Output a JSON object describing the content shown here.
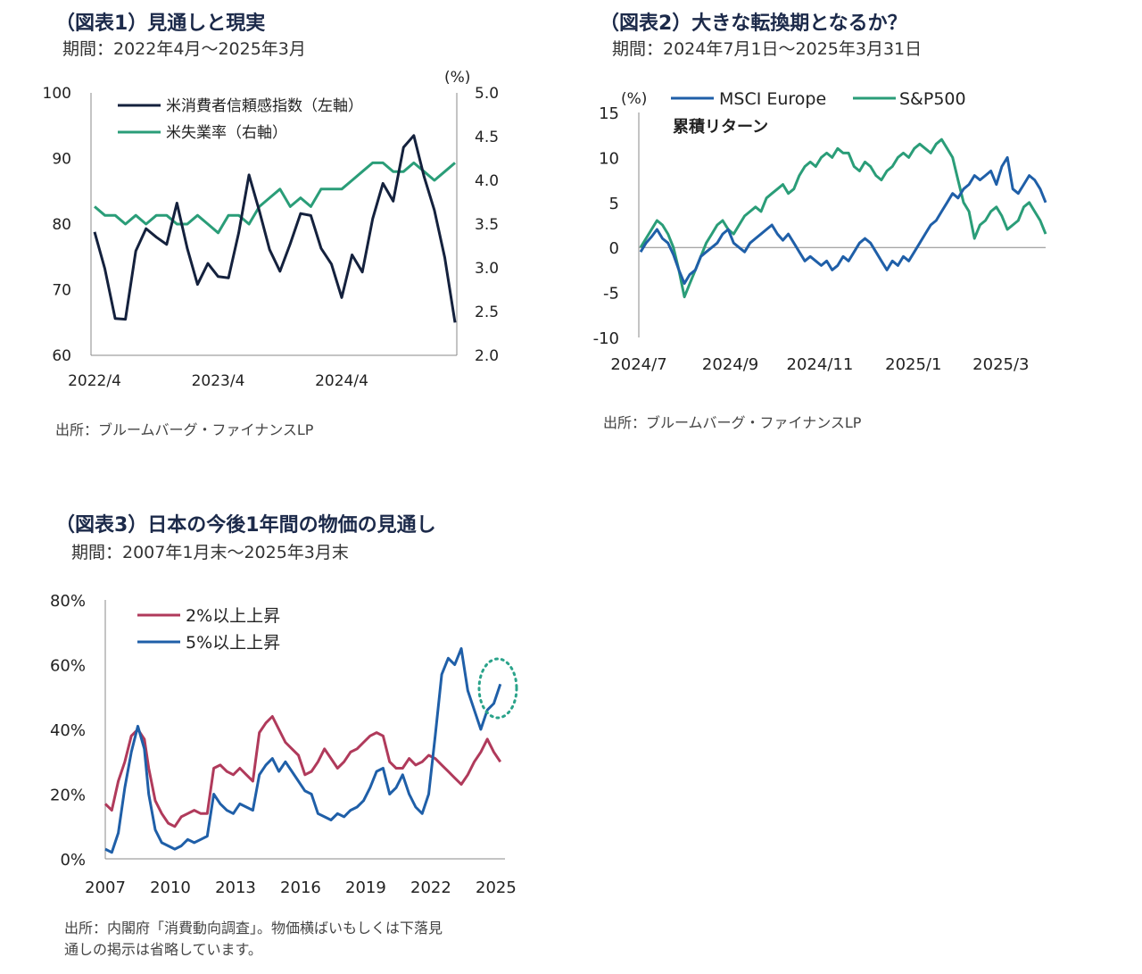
{
  "charts": {
    "c1": {
      "title": "（図表1）見通しと現実",
      "period": "期間：2022年4月〜2025年3月",
      "source": "出所：ブルームバーグ・ファイナンスLP"
    },
    "c2": {
      "title": "（図表2）大きな転換期となるか？",
      "period": "期間：2024年7月1日〜2025年3月31日",
      "source": "出所：ブルームバーグ・ファイナンスLP"
    },
    "c3": {
      "title": "（図表3）日本の今後1年間の物価の見通し",
      "period": "期間：2007年1月末〜2025年3月末",
      "source_lines": [
        "出所：内閣府「消費動向調査」。物価横ばいもしくは下落見",
        "通しの掲示は省略しています。"
      ]
    }
  },
  "colors": {
    "navy": "#14213d",
    "green": "#2a9d78",
    "blue": "#1f5fa8",
    "crimson": "#b03a5b",
    "dotted": "#2aa38a"
  },
  "chart_data": [
    {
      "id": "c1",
      "type": "line",
      "title": "（図表1）見通しと現実",
      "xlabel": "",
      "ylabel": "",
      "x_ticks": [
        "2022/4",
        "2023/4",
        "2024/4"
      ],
      "x_tick_index": [
        0,
        12,
        24
      ],
      "ylim_left": [
        60,
        100
      ],
      "ylim_right": [
        2.0,
        5.0
      ],
      "y_ticks_left": [
        "100",
        "90",
        "80",
        "70",
        "60"
      ],
      "y_ticks_right": [
        "5.0",
        "4.5",
        "4.0",
        "3.5",
        "3.0",
        "2.5",
        "2.0"
      ],
      "right_unit": "(%)",
      "series": [
        {
          "name": "米消費者信頼感指数（左軸）",
          "axis": "left",
          "color": "navy",
          "values": [
            78.8,
            73.2,
            65.6,
            65.5,
            75.9,
            79.3,
            78.0,
            76.9,
            83.2,
            76.3,
            70.8,
            74.0,
            72.0,
            71.8,
            78.7,
            87.5,
            82.0,
            76.1,
            72.8,
            77.0,
            81.6,
            81.3,
            76.3,
            73.9,
            68.8,
            75.3,
            72.7,
            80.8,
            86.2,
            83.5,
            91.7,
            93.5,
            87.2,
            82.1,
            74.9,
            65.0
          ]
        },
        {
          "name": "米失業率（右軸）",
          "axis": "right",
          "color": "green",
          "values": [
            3.7,
            3.6,
            3.6,
            3.5,
            3.6,
            3.5,
            3.6,
            3.6,
            3.5,
            3.5,
            3.6,
            3.5,
            3.4,
            3.6,
            3.6,
            3.5,
            3.7,
            3.8,
            3.9,
            3.7,
            3.8,
            3.7,
            3.9,
            3.9,
            3.9,
            4.0,
            4.1,
            4.2,
            4.2,
            4.1,
            4.1,
            4.2,
            4.1,
            4.0,
            4.1,
            4.2
          ]
        }
      ]
    },
    {
      "id": "c2",
      "type": "line",
      "title": "（図表2）大きな転換期となるか？",
      "xlabel": "",
      "ylabel": "",
      "subtitle": "累積リターン",
      "unit": "(%)",
      "ylim": [
        -10,
        15
      ],
      "y_ticks": [
        "15",
        "10",
        "5",
        "0",
        "-5",
        "-10"
      ],
      "x_ticks": [
        "2024/7",
        "2024/9",
        "2024/11",
        "2025/1",
        "2025/3"
      ],
      "x_tick_frac": [
        0,
        0.225,
        0.445,
        0.675,
        0.89
      ],
      "series": [
        {
          "name": "MSCI Europe",
          "color": "blue",
          "values": [
            -0.5,
            0.5,
            1.2,
            2.0,
            1.0,
            0.5,
            -0.8,
            -2.5,
            -4.0,
            -3.0,
            -2.5,
            -1.0,
            -0.5,
            0.0,
            0.5,
            1.5,
            2.0,
            0.5,
            0.0,
            -0.5,
            0.5,
            1.0,
            1.5,
            2.0,
            2.5,
            1.5,
            0.8,
            1.5,
            0.5,
            -0.5,
            -1.5,
            -1.0,
            -1.5,
            -2.0,
            -1.5,
            -2.5,
            -2.0,
            -1.0,
            -1.5,
            -0.5,
            0.5,
            1.0,
            0.5,
            -0.5,
            -1.5,
            -2.5,
            -1.5,
            -2.0,
            -1.0,
            -1.5,
            -0.5,
            0.5,
            1.5,
            2.5,
            3.0,
            4.0,
            5.0,
            6.0,
            5.5,
            6.5,
            7.0,
            8.0,
            7.5,
            8.0,
            8.5,
            7.0,
            9.0,
            10.0,
            6.5,
            6.0,
            7.0,
            8.0,
            7.5,
            6.5,
            5.0
          ]
        },
        {
          "name": "S&P500",
          "color": "green",
          "values": [
            0.0,
            1.0,
            2.0,
            3.0,
            2.5,
            1.5,
            0.0,
            -2.5,
            -5.5,
            -4.0,
            -2.5,
            -1.0,
            0.5,
            1.5,
            2.5,
            3.0,
            2.0,
            1.5,
            2.5,
            3.5,
            4.0,
            4.5,
            4.0,
            5.5,
            6.0,
            6.5,
            7.0,
            6.0,
            6.5,
            8.0,
            9.0,
            9.5,
            9.0,
            10.0,
            10.5,
            10.0,
            11.0,
            10.5,
            10.5,
            9.0,
            8.5,
            9.5,
            9.0,
            8.0,
            7.5,
            8.5,
            9.0,
            10.0,
            10.5,
            10.0,
            11.0,
            11.5,
            11.0,
            10.5,
            11.5,
            12.0,
            11.0,
            10.0,
            7.5,
            5.0,
            4.0,
            1.0,
            2.5,
            3.0,
            4.0,
            4.5,
            3.5,
            2.0,
            2.5,
            3.0,
            4.5,
            5.0,
            4.0,
            3.0,
            1.5
          ]
        }
      ]
    },
    {
      "id": "c3",
      "type": "line",
      "title": "（図表3）日本の今後1年間の物価の見通し",
      "xlabel": "",
      "ylabel": "",
      "ylim": [
        0,
        80
      ],
      "y_ticks": [
        "80%",
        "60%",
        "40%",
        "20%",
        "0%"
      ],
      "x_ticks": [
        "2007",
        "2010",
        "2013",
        "2016",
        "2019",
        "2022",
        "2025"
      ],
      "x_range": [
        2007.0,
        2025.25
      ],
      "series": [
        {
          "name": "2%以上上昇",
          "color": "crimson",
          "x": [
            2007.0,
            2007.3,
            2007.6,
            2007.9,
            2008.2,
            2008.5,
            2008.8,
            2009.0,
            2009.3,
            2009.6,
            2009.9,
            2010.2,
            2010.5,
            2010.8,
            2011.1,
            2011.4,
            2011.7,
            2012.0,
            2012.3,
            2012.6,
            2012.9,
            2013.2,
            2013.5,
            2013.8,
            2014.1,
            2014.4,
            2014.7,
            2015.0,
            2015.3,
            2015.6,
            2015.9,
            2016.2,
            2016.5,
            2016.8,
            2017.1,
            2017.4,
            2017.7,
            2018.0,
            2018.3,
            2018.6,
            2018.9,
            2019.2,
            2019.5,
            2019.8,
            2020.1,
            2020.4,
            2020.7,
            2021.0,
            2021.3,
            2021.6,
            2021.9,
            2022.2,
            2022.5,
            2022.8,
            2023.1,
            2023.4,
            2023.7,
            2024.0,
            2024.3,
            2024.6,
            2024.9,
            2025.2
          ],
          "values": [
            17,
            15,
            24,
            30,
            38,
            40,
            37,
            28,
            18,
            14,
            11,
            10,
            13,
            14,
            15,
            14,
            14,
            28,
            29,
            27,
            26,
            28,
            26,
            24,
            39,
            42,
            44,
            40,
            36,
            34,
            32,
            26,
            27,
            30,
            34,
            31,
            28,
            30,
            33,
            34,
            36,
            38,
            39,
            38,
            30,
            28,
            28,
            31,
            29,
            30,
            32,
            31,
            29,
            27,
            25,
            23,
            26,
            30,
            33,
            37,
            33,
            30
          ]
        },
        {
          "name": "5%以上上昇",
          "color": "blue",
          "x": [
            2007.0,
            2007.3,
            2007.6,
            2007.9,
            2008.2,
            2008.5,
            2008.8,
            2009.0,
            2009.3,
            2009.6,
            2009.9,
            2010.2,
            2010.5,
            2010.8,
            2011.1,
            2011.4,
            2011.7,
            2012.0,
            2012.3,
            2012.6,
            2012.9,
            2013.2,
            2013.5,
            2013.8,
            2014.1,
            2014.4,
            2014.7,
            2015.0,
            2015.3,
            2015.6,
            2015.9,
            2016.2,
            2016.5,
            2016.8,
            2017.1,
            2017.4,
            2017.7,
            2018.0,
            2018.3,
            2018.6,
            2018.9,
            2019.2,
            2019.5,
            2019.8,
            2020.1,
            2020.4,
            2020.7,
            2021.0,
            2021.3,
            2021.6,
            2021.9,
            2022.2,
            2022.5,
            2022.8,
            2023.1,
            2023.4,
            2023.7,
            2024.0,
            2024.3,
            2024.6,
            2024.9,
            2025.2
          ],
          "values": [
            3,
            2,
            8,
            22,
            33,
            41,
            34,
            20,
            9,
            5,
            4,
            3,
            4,
            6,
            5,
            6,
            7,
            20,
            17,
            15,
            14,
            17,
            16,
            15,
            26,
            29,
            31,
            27,
            30,
            27,
            24,
            21,
            20,
            14,
            13,
            12,
            14,
            13,
            15,
            16,
            18,
            22,
            27,
            28,
            20,
            22,
            26,
            20,
            16,
            14,
            20,
            38,
            57,
            62,
            60,
            65,
            52,
            46,
            40,
            46,
            48,
            54
          ]
        }
      ]
    }
  ]
}
